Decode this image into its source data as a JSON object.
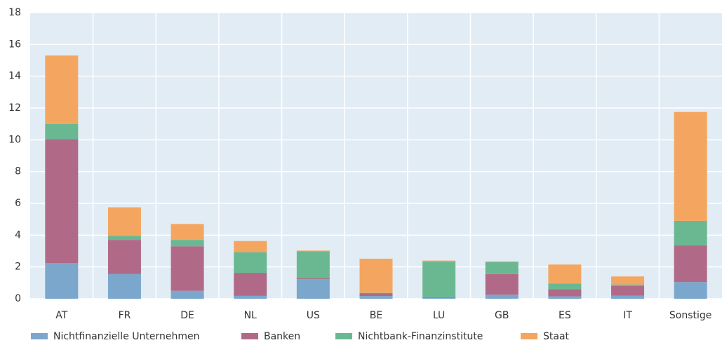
{
  "chart_data": {
    "type": "stacked_bar",
    "categories": [
      "AT",
      "FR",
      "DE",
      "NL",
      "US",
      "BE",
      "LU",
      "GB",
      "ES",
      "IT",
      "Sonstige"
    ],
    "series": [
      {
        "name": "Nichtfinanzielle Unternehmen",
        "color": "#7ba7cc",
        "values": [
          2.25,
          1.55,
          0.5,
          0.18,
          1.23,
          0.17,
          0.05,
          0.25,
          0.15,
          0.2,
          1.05
        ]
      },
      {
        "name": "Banken",
        "color": "#b06a87",
        "values": [
          7.8,
          2.15,
          2.8,
          1.45,
          0.05,
          0.18,
          0.05,
          1.3,
          0.45,
          0.6,
          2.3
        ]
      },
      {
        "name": "Nichtbank-Finanzinstitute",
        "color": "#6ab891",
        "values": [
          0.95,
          0.25,
          0.4,
          1.3,
          1.7,
          0.02,
          2.25,
          0.75,
          0.35,
          0.1,
          1.55
        ]
      },
      {
        "name": "Staat",
        "color": "#f4a660",
        "values": [
          4.3,
          1.8,
          1.0,
          0.7,
          0.05,
          2.15,
          0.05,
          0.05,
          1.2,
          0.5,
          6.85
        ]
      }
    ],
    "ylim": [
      0,
      18
    ],
    "yticks": [
      0,
      2,
      4,
      6,
      8,
      10,
      12,
      14,
      16,
      18
    ],
    "grid": true,
    "legend": "bottom"
  }
}
